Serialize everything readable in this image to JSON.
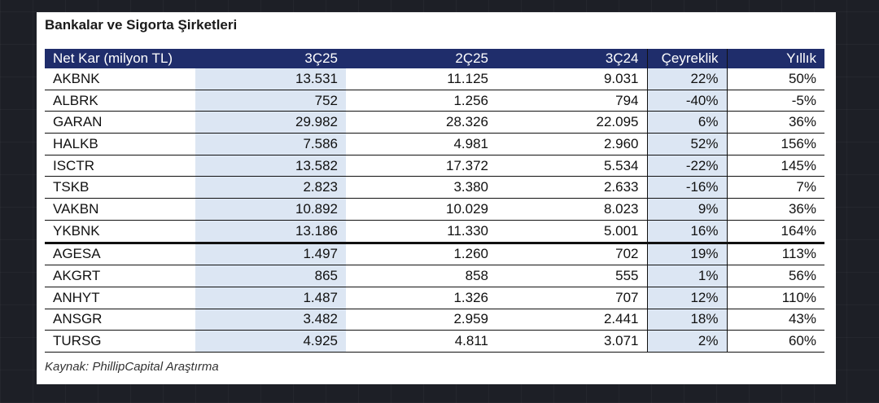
{
  "title": "Bankalar ve Sigorta Şirketleri",
  "table": {
    "header": [
      "Net Kar (milyon TL)",
      "3Ç25",
      "2Ç25",
      "3Ç24",
      "Çeyreklik",
      "Yıllık"
    ],
    "rows": [
      [
        "AKBNK",
        "13.531",
        "11.125",
        "9.031",
        "22%",
        "50%"
      ],
      [
        "ALBRK",
        "752",
        "1.256",
        "794",
        "-40%",
        "-5%"
      ],
      [
        "GARAN",
        "29.982",
        "28.326",
        "22.095",
        "6%",
        "36%"
      ],
      [
        "HALKB",
        "7.586",
        "4.981",
        "2.960",
        "52%",
        "156%"
      ],
      [
        "ISCTR",
        "13.582",
        "17.372",
        "5.534",
        "-22%",
        "145%"
      ],
      [
        "TSKB",
        "2.823",
        "3.380",
        "2.633",
        "-16%",
        "7%"
      ],
      [
        "VAKBN",
        "10.892",
        "10.029",
        "8.023",
        "9%",
        "36%"
      ],
      [
        "YKBNK",
        "13.186",
        "11.330",
        "5.001",
        "16%",
        "164%"
      ],
      [
        "AGESA",
        "1.497",
        "1.260",
        "702",
        "19%",
        "113%"
      ],
      [
        "AKGRT",
        "865",
        "858",
        "555",
        "1%",
        "56%"
      ],
      [
        "ANHYT",
        "1.487",
        "1.326",
        "707",
        "12%",
        "110%"
      ],
      [
        "ANSGR",
        "3.482",
        "2.959",
        "2.441",
        "18%",
        "43%"
      ],
      [
        "TURSG",
        "4.925",
        "4.811",
        "3.071",
        "2%",
        "60%"
      ]
    ]
  },
  "source": "Kaynak: PhillipCapital Araştırma"
}
